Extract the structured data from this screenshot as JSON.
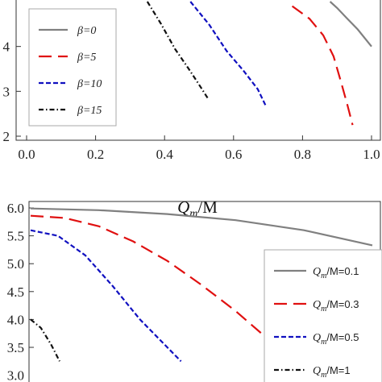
{
  "chart_data": [
    {
      "type": "line",
      "xlabel": "Q_m/M",
      "xlabel_parts": {
        "var": "Q",
        "sub": "m",
        "rest": "/M"
      },
      "xlim": [
        0.0,
        1.0
      ],
      "ylim": [
        2.0,
        5.0
      ],
      "x_ticks": [
        "0.0",
        "0.2",
        "0.4",
        "0.6",
        "0.8",
        "1.0"
      ],
      "y_ticks": [
        "2",
        "3",
        "4"
      ],
      "legend_position": "top-left",
      "series": [
        {
          "name": "β=0",
          "color": "#808080",
          "dash": "solid",
          "points": [
            [
              0.88,
              5.0
            ],
            [
              0.9,
              4.86
            ],
            [
              0.93,
              4.62
            ],
            [
              0.96,
              4.38
            ],
            [
              1.0,
              4.0
            ]
          ]
        },
        {
          "name": "β=5",
          "color": "#e01010",
          "dash": "long-dash",
          "points": [
            [
              0.77,
              4.9
            ],
            [
              0.82,
              4.62
            ],
            [
              0.86,
              4.25
            ],
            [
              0.89,
              3.78
            ],
            [
              0.91,
              3.25
            ],
            [
              0.93,
              2.7
            ],
            [
              0.945,
              2.25
            ]
          ]
        },
        {
          "name": "β=10",
          "color": "#1010c0",
          "dash": "short-dash",
          "points": [
            [
              0.475,
              5.0
            ],
            [
              0.53,
              4.48
            ],
            [
              0.58,
              3.9
            ],
            [
              0.63,
              3.45
            ],
            [
              0.67,
              3.05
            ],
            [
              0.695,
              2.65
            ]
          ]
        },
        {
          "name": "β=15",
          "color": "#111111",
          "dash": "dash-dot",
          "points": [
            [
              0.35,
              5.0
            ],
            [
              0.39,
              4.5
            ],
            [
              0.43,
              3.95
            ],
            [
              0.47,
              3.5
            ],
            [
              0.5,
              3.15
            ],
            [
              0.525,
              2.85
            ]
          ]
        }
      ]
    },
    {
      "type": "line",
      "xlim": [
        0.0,
        1.0
      ],
      "ylim": [
        3.5,
        6.05
      ],
      "y_ticks": [
        "6.0",
        "5.5",
        "5.0",
        "4.5",
        "4.0",
        "3.5"
      ],
      "y_ticks_partial": "3.0",
      "legend_position": "bottom-right",
      "series": [
        {
          "name": "Q_m/M=0.1",
          "label_parts": {
            "var": "Q",
            "sub": "m",
            "rest": "/M=0.1"
          },
          "color": "#808080",
          "dash": "solid",
          "points": [
            [
              0.0,
              5.99
            ],
            [
              0.2,
              5.96
            ],
            [
              0.4,
              5.89
            ],
            [
              0.6,
              5.78
            ],
            [
              0.8,
              5.6
            ],
            [
              1.0,
              5.33
            ]
          ]
        },
        {
          "name": "Q_m/M=0.3",
          "label_parts": {
            "var": "Q",
            "sub": "m",
            "rest": "/M=0.3"
          },
          "color": "#e01010",
          "dash": "long-dash",
          "points": [
            [
              0.0,
              5.86
            ],
            [
              0.1,
              5.82
            ],
            [
              0.2,
              5.67
            ],
            [
              0.3,
              5.4
            ],
            [
              0.4,
              5.05
            ],
            [
              0.5,
              4.62
            ],
            [
              0.6,
              4.15
            ],
            [
              0.7,
              3.62
            ],
            [
              0.76,
              3.3
            ]
          ]
        },
        {
          "name": "Q_m/M=0.5",
          "label_parts": {
            "var": "Q",
            "sub": "m",
            "rest": "/M=0.5"
          },
          "color": "#1010c0",
          "dash": "short-dash",
          "points": [
            [
              0.0,
              5.6
            ],
            [
              0.08,
              5.5
            ],
            [
              0.16,
              5.15
            ],
            [
              0.24,
              4.6
            ],
            [
              0.32,
              4.0
            ],
            [
              0.4,
              3.5
            ],
            [
              0.44,
              3.25
            ]
          ]
        },
        {
          "name": "Q_m/M=1",
          "label_parts": {
            "var": "Q",
            "sub": "m",
            "rest": "/M=1"
          },
          "color": "#111111",
          "dash": "dash-dot",
          "points": [
            [
              0.0,
              4.0
            ],
            [
              0.03,
              3.85
            ],
            [
              0.06,
              3.55
            ],
            [
              0.085,
              3.25
            ]
          ]
        }
      ]
    }
  ]
}
